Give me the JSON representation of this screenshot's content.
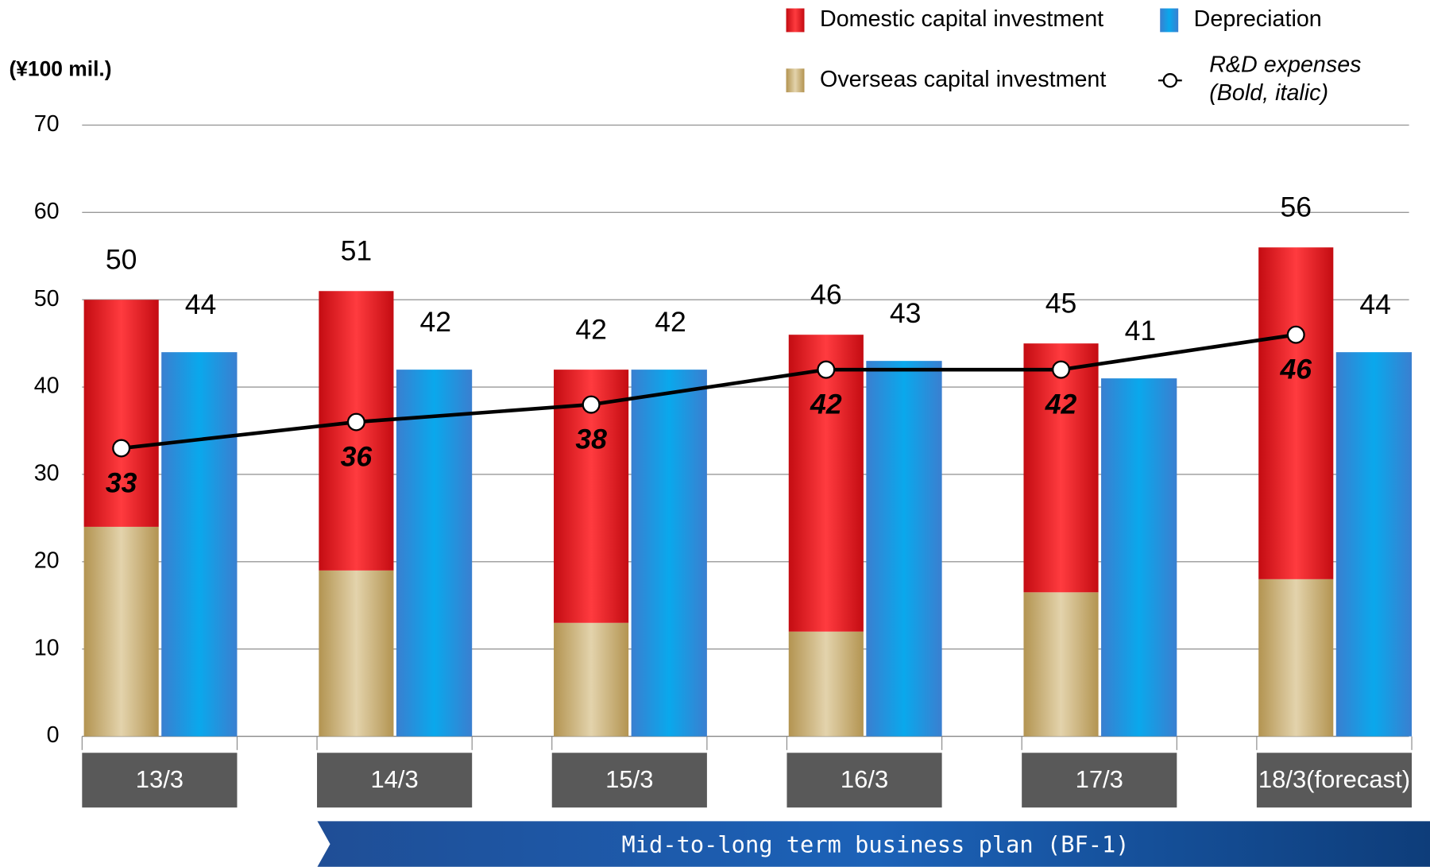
{
  "chart_data": {
    "type": "bar",
    "unit_label": "(¥100 mil.)",
    "categories": [
      "13/3",
      "14/3",
      "15/3",
      "16/3",
      "17/3",
      "18/3(forecast)"
    ],
    "series": [
      {
        "name": "Overseas capital investment",
        "color": "#c8b07a",
        "type": "bar",
        "stack": "capex",
        "values": [
          24,
          19,
          13,
          12,
          16.5,
          18
        ]
      },
      {
        "name": "Domestic capital investment",
        "color": "#ec2228",
        "type": "bar",
        "stack": "capex",
        "values": [
          26,
          32,
          29,
          34,
          28.5,
          38
        ]
      },
      {
        "name": "Depreciation",
        "color": "#1e8fe0",
        "type": "bar",
        "values": [
          44,
          42,
          42,
          43,
          41,
          44
        ]
      },
      {
        "name": "R&D expenses",
        "color": "#000000",
        "type": "line",
        "values": [
          33,
          36,
          38,
          42,
          42,
          46
        ]
      }
    ],
    "line_note": "(Bold, italic)",
    "totals": [
      50,
      51,
      42,
      46,
      45,
      56
    ],
    "ylim": [
      0,
      70
    ],
    "yticks": [
      0,
      10,
      20,
      30,
      40,
      50,
      60,
      70
    ],
    "grid": true,
    "banner": "Mid-to-long term business plan (BF-1)"
  }
}
